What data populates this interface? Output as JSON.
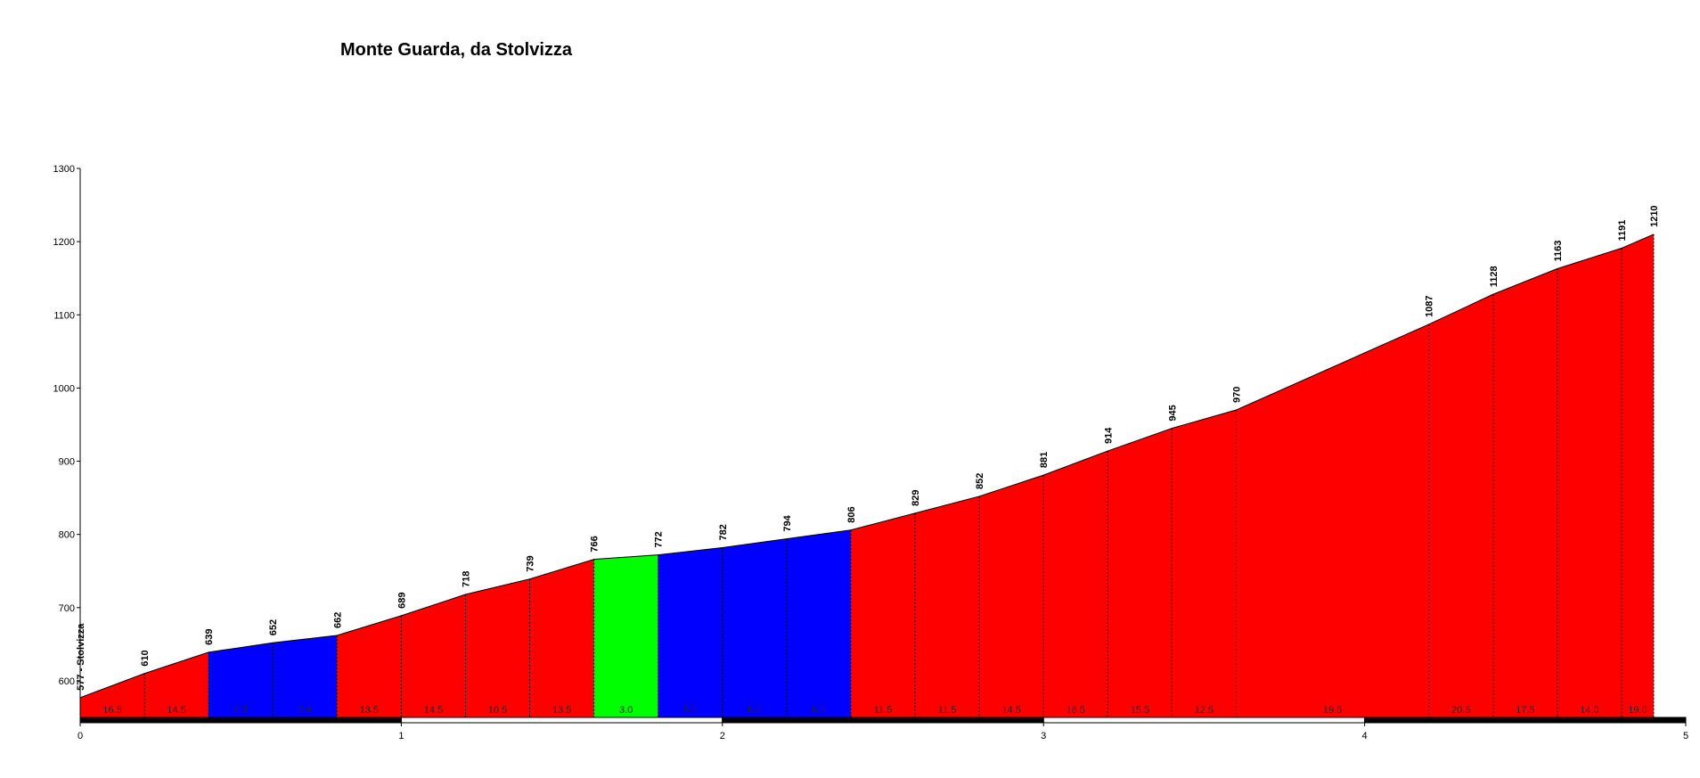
{
  "chart_data": {
    "type": "area",
    "title": "Monte Guarda, da Stolvizza",
    "x": [
      0,
      0.2,
      0.4,
      0.6,
      0.8,
      1.0,
      1.2,
      1.4,
      1.6,
      1.8,
      2.0,
      2.2,
      2.4,
      2.6,
      2.8,
      3.0,
      3.2,
      3.4,
      3.6,
      4.2,
      4.4,
      4.6,
      4.8,
      4.9
    ],
    "series": [
      {
        "name": "Stolvizza",
        "color": "#ff0000",
        "values": [
          577,
          610,
          639,
          652,
          662,
          689,
          718,
          739,
          766,
          772,
          782,
          794,
          806,
          829,
          852,
          881,
          914,
          945,
          970,
          1087,
          1128,
          1163,
          1191,
          1210
        ],
        "value_labels": [
          "577 - Stolvizza",
          "610",
          "639",
          "652",
          "662",
          "689",
          "718",
          "739",
          "766",
          "772",
          "782",
          "794",
          "806",
          "829",
          "852",
          "881",
          "914",
          "945",
          "970",
          "1087",
          "1128",
          "1163",
          "1191",
          "1210"
        ]
      }
    ],
    "segment_labels": [
      "16.5",
      "14.5",
      "6.5",
      "5.0",
      "13.5",
      "14.5",
      "10.5",
      "13.5",
      "3.0",
      "5.0",
      "6.0",
      "6.0",
      "11.5",
      "11.5",
      "14.5",
      "16.5",
      "15.5",
      "12.5",
      "19.5",
      "20.5",
      "17.5",
      "14.0",
      "19.0"
    ],
    "segment_colors": [
      "#ff0000",
      "#ff0000",
      "#0000ff",
      "#0000ff",
      "#ff0000",
      "#ff0000",
      "#ff0000",
      "#ff0000",
      "#00ff00",
      "#0000ff",
      "#0000ff",
      "#0000ff",
      "#ff0000",
      "#ff0000",
      "#ff0000",
      "#ff0000",
      "#ff0000",
      "#ff0000",
      "#ff0000",
      "#ff0000",
      "#ff0000",
      "#ff0000",
      "#ff0000"
    ],
    "xlim": [
      0,
      5
    ],
    "xticks": [
      0,
      1,
      2,
      3,
      4,
      5
    ],
    "ylim": [
      550,
      1300
    ],
    "yticks": [
      600,
      700,
      800,
      900,
      1000,
      1100,
      1200,
      1300
    ]
  }
}
